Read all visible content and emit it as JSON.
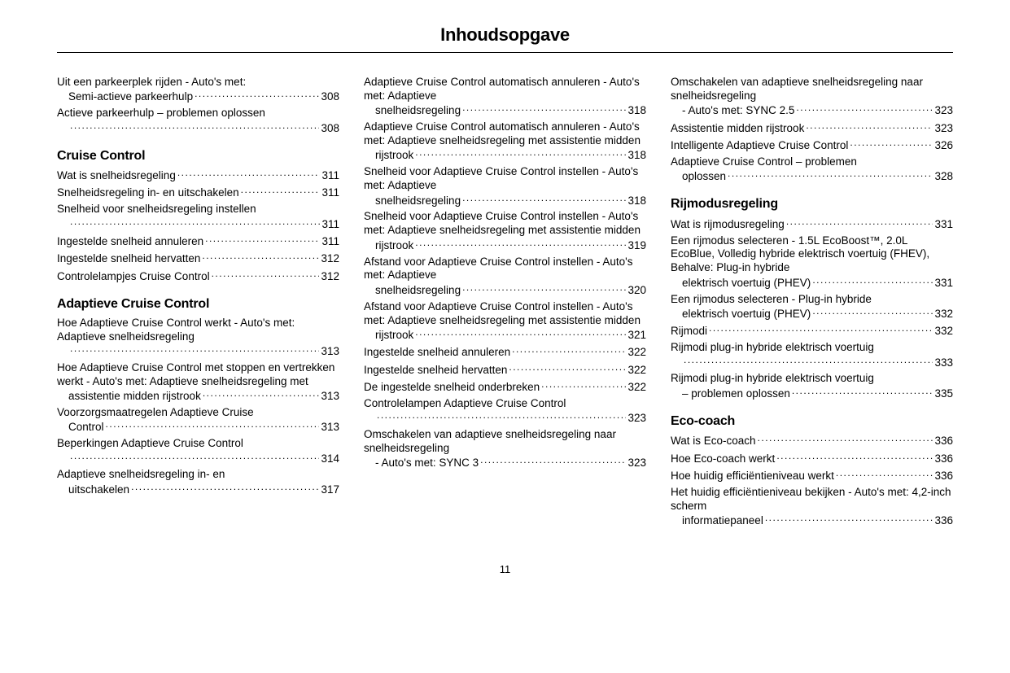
{
  "title": "Inhoudsopgave",
  "pageNumber": "11",
  "columns": [
    {
      "entries": [
        {
          "type": "item",
          "text": "Uit een parkeerplek rijden - Auto's met:",
          "tail": "Semi-actieve parkeerhulp",
          "page": "308",
          "indent": true
        },
        {
          "type": "item",
          "text": "Actieve parkeerhulp – problemen oplossen",
          "tail": "",
          "page": "308",
          "indent": true
        },
        {
          "type": "section",
          "label": "Cruise Control"
        },
        {
          "type": "item",
          "text": "",
          "tail": "Wat is snelheidsregeling",
          "page": "311",
          "indent": false
        },
        {
          "type": "item",
          "text": "",
          "tail": "Snelheidsregeling in- en uitschakelen",
          "page": "311",
          "indent": false
        },
        {
          "type": "item",
          "text": "Snelheid voor snelheidsregeling instellen",
          "tail": "",
          "page": "311",
          "indent": true
        },
        {
          "type": "item",
          "text": "",
          "tail": "Ingestelde snelheid annuleren",
          "page": "311",
          "indent": false
        },
        {
          "type": "item",
          "text": "",
          "tail": "Ingestelde snelheid hervatten",
          "page": "312",
          "indent": false
        },
        {
          "type": "item",
          "text": "",
          "tail": "Controlelampjes Cruise Control",
          "page": "312",
          "indent": false
        },
        {
          "type": "section",
          "label": "Adaptieve Cruise Control"
        },
        {
          "type": "item",
          "text": "Hoe Adaptieve Cruise Control werkt - Auto's met: Adaptieve snelheidsregeling",
          "tail": "",
          "page": "313",
          "indent": true
        },
        {
          "type": "item",
          "text": "Hoe Adaptieve Cruise Control met stoppen en vertrekken werkt - Auto's met: Adaptieve snelheidsregeling met",
          "tail": "assistentie midden rijstrook",
          "page": "313",
          "indent": true
        },
        {
          "type": "item",
          "text": "Voorzorgsmaatregelen Adaptieve Cruise",
          "tail": "Control",
          "page": "313",
          "indent": true
        },
        {
          "type": "item",
          "text": "Beperkingen Adaptieve Cruise Control",
          "tail": "",
          "page": "314",
          "indent": true
        },
        {
          "type": "item",
          "text": "Adaptieve snelheidsregeling in- en",
          "tail": "uitschakelen",
          "page": "317",
          "indent": true
        }
      ]
    },
    {
      "entries": [
        {
          "type": "item",
          "text": "Adaptieve Cruise Control automatisch annuleren - Auto's met: Adaptieve",
          "tail": "snelheidsregeling",
          "page": "318",
          "indent": true
        },
        {
          "type": "item",
          "text": "Adaptieve Cruise Control automatisch annuleren - Auto's met: Adaptieve snelheidsregeling met assistentie midden",
          "tail": "rijstrook",
          "page": "318",
          "indent": true
        },
        {
          "type": "item",
          "text": "Snelheid voor Adaptieve Cruise Control instellen - Auto's met: Adaptieve",
          "tail": "snelheidsregeling",
          "page": "318",
          "indent": true
        },
        {
          "type": "item",
          "text": "Snelheid voor Adaptieve Cruise Control instellen - Auto's met: Adaptieve snelheidsregeling met assistentie midden",
          "tail": "rijstrook",
          "page": "319",
          "indent": true
        },
        {
          "type": "item",
          "text": "Afstand voor Adaptieve Cruise Control instellen - Auto's met: Adaptieve",
          "tail": "snelheidsregeling",
          "page": "320",
          "indent": true
        },
        {
          "type": "item",
          "text": "Afstand voor Adaptieve Cruise Control instellen - Auto's met: Adaptieve snelheidsregeling met assistentie midden",
          "tail": "rijstrook",
          "page": "321",
          "indent": true
        },
        {
          "type": "item",
          "text": "",
          "tail": "Ingestelde snelheid annuleren",
          "page": "322",
          "indent": false
        },
        {
          "type": "item",
          "text": "",
          "tail": "Ingestelde snelheid hervatten",
          "page": "322",
          "indent": false
        },
        {
          "type": "item",
          "text": "",
          "tail": "De ingestelde snelheid onderbreken",
          "page": "322",
          "indent": false
        },
        {
          "type": "item",
          "text": "Controlelampen Adaptieve Cruise Control",
          "tail": "",
          "page": "323",
          "indent": true
        },
        {
          "type": "item",
          "text": "Omschakelen van adaptieve snelheidsregeling naar snelheidsregeling",
          "tail": "- Auto's met: SYNC 3",
          "page": "323",
          "indent": true
        }
      ]
    },
    {
      "entries": [
        {
          "type": "item",
          "text": "Omschakelen van adaptieve snelheidsregeling naar snelheidsregeling",
          "tail": "- Auto's met: SYNC 2.5",
          "page": "323",
          "indent": true
        },
        {
          "type": "item",
          "text": "",
          "tail": "Assistentie midden rijstrook",
          "page": "323",
          "indent": false
        },
        {
          "type": "item",
          "text": "",
          "tail": "Intelligente Adaptieve Cruise Control",
          "page": "326",
          "indent": false
        },
        {
          "type": "item",
          "text": "Adaptieve Cruise Control – problemen",
          "tail": "oplossen",
          "page": "328",
          "indent": true
        },
        {
          "type": "section",
          "label": "Rijmodusregeling"
        },
        {
          "type": "item",
          "text": "",
          "tail": "Wat is rijmodusregeling",
          "page": "331",
          "indent": false
        },
        {
          "type": "item",
          "text": "Een rijmodus selecteren - 1.5L EcoBoost™, 2.0L EcoBlue, Volledig hybride elektrisch voertuig (FHEV), Behalve: Plug-in hybride",
          "tail": "elektrisch voertuig (PHEV)",
          "page": "331",
          "indent": true
        },
        {
          "type": "item",
          "text": "Een rijmodus selecteren - Plug-in hybride",
          "tail": "elektrisch voertuig (PHEV)",
          "page": "332",
          "indent": true
        },
        {
          "type": "item",
          "text": "",
          "tail": "Rijmodi",
          "page": "332",
          "indent": false
        },
        {
          "type": "item",
          "text": "Rijmodi plug-in hybride elektrisch voertuig",
          "tail": "",
          "page": "333",
          "indent": true
        },
        {
          "type": "item",
          "text": "Rijmodi plug-in hybride elektrisch voertuig",
          "tail": "– problemen oplossen",
          "page": "335",
          "indent": true
        },
        {
          "type": "section",
          "label": "Eco-coach"
        },
        {
          "type": "item",
          "text": "",
          "tail": "Wat is Eco-coach",
          "page": "336",
          "indent": false
        },
        {
          "type": "item",
          "text": "",
          "tail": "Hoe Eco-coach werkt",
          "page": "336",
          "indent": false
        },
        {
          "type": "item",
          "text": "",
          "tail": "Hoe huidig efficiëntieniveau werkt",
          "page": "336",
          "indent": false
        },
        {
          "type": "item",
          "text": "Het huidig efficiëntieniveau bekijken - Auto's met: 4,2-inch scherm",
          "tail": "informatiepaneel",
          "page": "336",
          "indent": true
        }
      ]
    }
  ]
}
